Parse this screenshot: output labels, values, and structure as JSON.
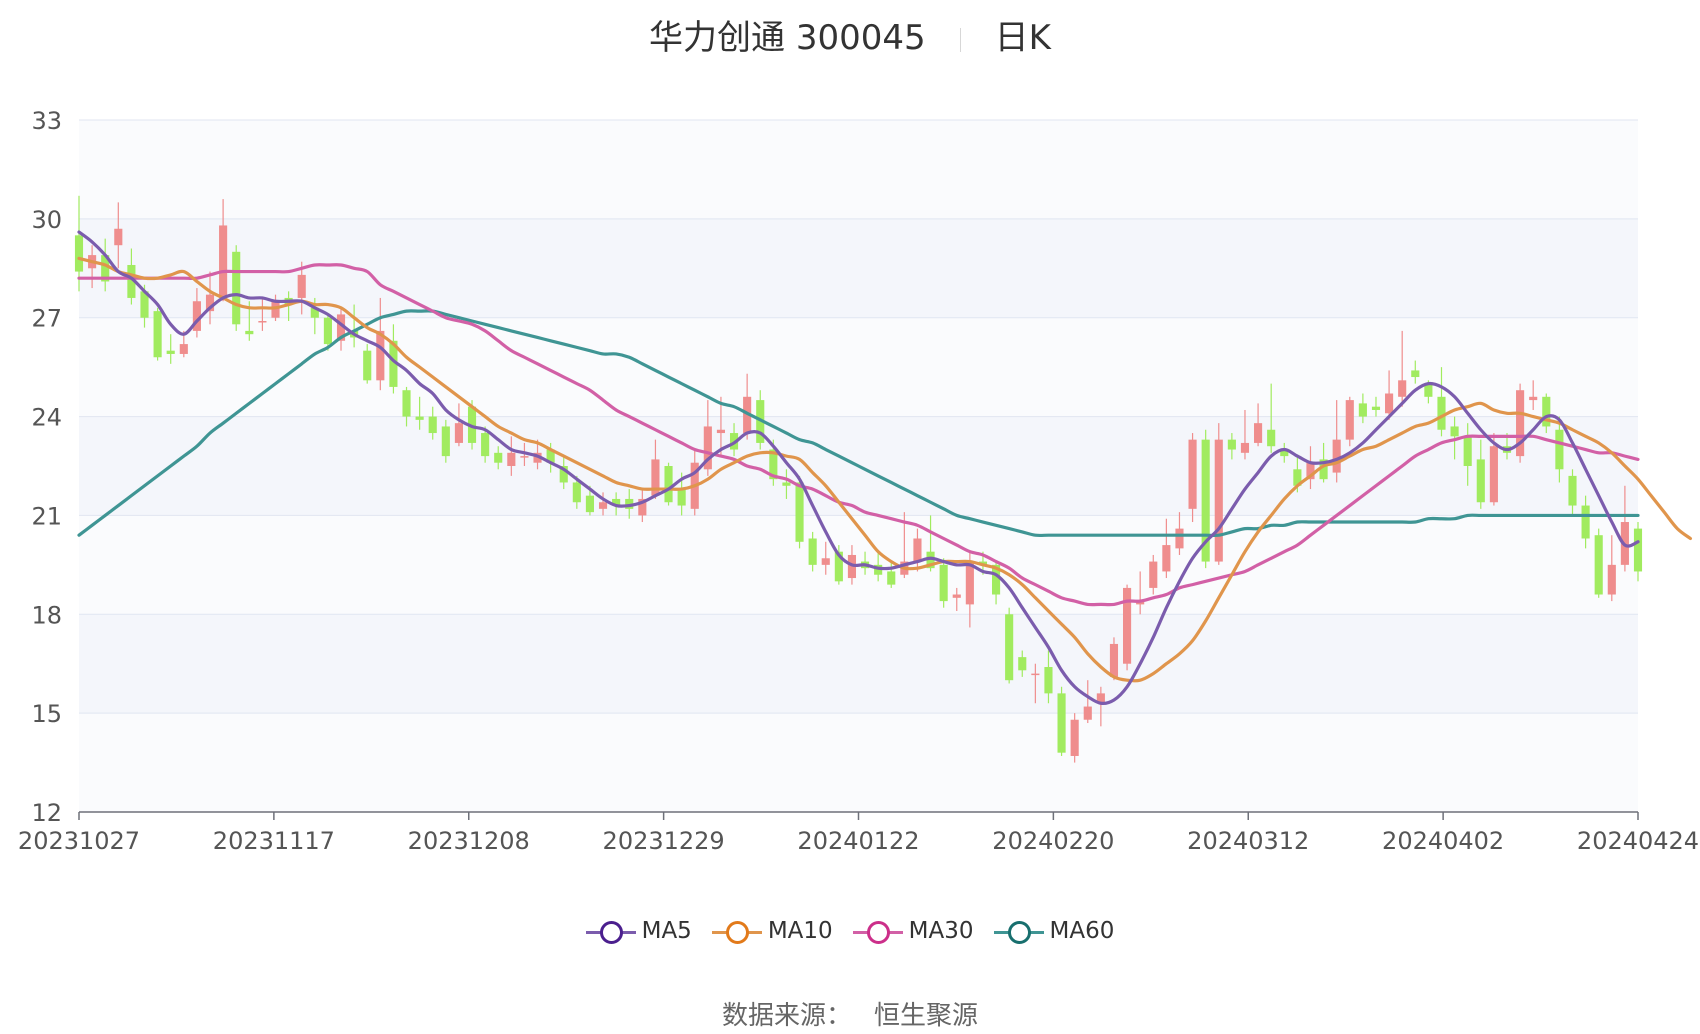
{
  "title": {
    "name": "华力创通 300045",
    "period": "日K"
  },
  "source": {
    "label": "数据来源：",
    "value": "恒生聚源"
  },
  "colors": {
    "up": "#ef8d8d",
    "down": "#a1eb5f",
    "MA5": "#7b5cad",
    "MA10": "#e0954c",
    "MA30": "#d260a6",
    "MA60": "#3f9594"
  },
  "legend_colors": {
    "MA5": "#4b1f8e",
    "MA10": "#e27a1a",
    "MA30": "#cc2f8a",
    "MA60": "#186f6e"
  },
  "chart_data": {
    "type": "candlestick",
    "title": "华力创通 300045 日K",
    "ylim": [
      12,
      33
    ],
    "yticks": [
      12,
      15,
      18,
      21,
      24,
      27,
      30,
      33
    ],
    "grid": true,
    "legend_position": "bottom",
    "xtick_labels": [
      "20231027",
      "20231117",
      "20231208",
      "20231229",
      "20240122",
      "20240220",
      "20240312",
      "20240402",
      "20240424"
    ],
    "num_trading_days": 120,
    "candles": [
      [
        29.5,
        28.4,
        30.7,
        27.8
      ],
      [
        28.5,
        28.9,
        29.2,
        27.9
      ],
      [
        28.9,
        28.1,
        29.4,
        27.8
      ],
      [
        29.2,
        29.7,
        30.5,
        28.5
      ],
      [
        28.6,
        27.6,
        29.1,
        27.4
      ],
      [
        27.8,
        27.0,
        28.0,
        26.7
      ],
      [
        27.2,
        25.8,
        27.3,
        25.7
      ],
      [
        26.0,
        25.9,
        26.5,
        25.6
      ],
      [
        25.9,
        26.2,
        26.6,
        25.8
      ],
      [
        26.6,
        27.5,
        27.9,
        26.4
      ],
      [
        27.2,
        27.7,
        28.4,
        26.8
      ],
      [
        27.6,
        29.8,
        30.6,
        27.5
      ],
      [
        29.0,
        26.8,
        29.2,
        26.6
      ],
      [
        26.6,
        26.5,
        27.5,
        26.3
      ],
      [
        26.9,
        26.9,
        27.6,
        26.6
      ],
      [
        27.0,
        27.5,
        27.7,
        26.9
      ],
      [
        27.6,
        27.4,
        27.8,
        26.9
      ],
      [
        27.6,
        28.3,
        28.7,
        27.1
      ],
      [
        27.3,
        27.0,
        27.6,
        26.5
      ],
      [
        27.0,
        26.2,
        27.1,
        26.0
      ],
      [
        26.3,
        27.1,
        27.3,
        26.0
      ],
      [
        26.6,
        26.4,
        27.4,
        26.1
      ],
      [
        26.0,
        25.1,
        26.2,
        25.0
      ],
      [
        25.1,
        26.6,
        27.6,
        24.8
      ],
      [
        26.3,
        24.9,
        26.8,
        24.7
      ],
      [
        24.8,
        24.0,
        24.9,
        23.7
      ],
      [
        24.0,
        23.9,
        24.6,
        23.6
      ],
      [
        24.0,
        23.5,
        24.3,
        23.3
      ],
      [
        23.7,
        22.8,
        23.9,
        22.6
      ],
      [
        23.2,
        23.8,
        24.4,
        23.1
      ],
      [
        24.3,
        23.2,
        24.5,
        23.0
      ],
      [
        23.5,
        22.8,
        23.7,
        22.6
      ],
      [
        22.9,
        22.6,
        23.1,
        22.4
      ],
      [
        22.5,
        22.9,
        23.4,
        22.2
      ],
      [
        22.8,
        22.8,
        23.2,
        22.5
      ],
      [
        22.6,
        22.9,
        23.3,
        22.4
      ],
      [
        23.0,
        22.6,
        23.2,
        22.3
      ],
      [
        22.5,
        22.0,
        22.8,
        21.8
      ],
      [
        22.0,
        21.4,
        22.2,
        21.2
      ],
      [
        21.6,
        21.1,
        21.9,
        21.0
      ],
      [
        21.2,
        21.4,
        21.7,
        21.0
      ],
      [
        21.5,
        21.3,
        21.7,
        21.0
      ],
      [
        21.5,
        21.2,
        21.8,
        20.9
      ],
      [
        21.0,
        21.5,
        21.8,
        20.8
      ],
      [
        21.6,
        22.7,
        23.3,
        21.5
      ],
      [
        22.5,
        21.4,
        22.6,
        21.3
      ],
      [
        21.8,
        21.3,
        22.3,
        21.0
      ],
      [
        21.2,
        22.6,
        23.0,
        21.0
      ],
      [
        22.4,
        23.7,
        24.5,
        22.2
      ],
      [
        23.5,
        23.6,
        24.6,
        22.8
      ],
      [
        23.5,
        23.0,
        23.8,
        22.8
      ],
      [
        23.5,
        24.6,
        25.3,
        23.3
      ],
      [
        24.5,
        23.2,
        24.8,
        23.0
      ],
      [
        23.0,
        22.1,
        23.3,
        21.9
      ],
      [
        22.0,
        21.9,
        22.4,
        21.5
      ],
      [
        22.0,
        20.2,
        22.2,
        20.0
      ],
      [
        20.3,
        19.5,
        20.5,
        19.3
      ],
      [
        19.5,
        19.7,
        20.2,
        19.2
      ],
      [
        19.9,
        19.0,
        20.1,
        18.9
      ],
      [
        19.1,
        19.8,
        20.1,
        18.9
      ],
      [
        19.6,
        19.4,
        19.9,
        19.2
      ],
      [
        19.5,
        19.2,
        19.9,
        19.0
      ],
      [
        19.3,
        18.9,
        19.6,
        18.8
      ],
      [
        19.2,
        19.6,
        21.1,
        19.1
      ],
      [
        19.6,
        20.3,
        20.6,
        19.3
      ],
      [
        19.9,
        19.4,
        21.0,
        19.3
      ],
      [
        19.5,
        18.4,
        19.7,
        18.2
      ],
      [
        18.5,
        18.6,
        18.8,
        18.1
      ],
      [
        18.3,
        19.6,
        19.9,
        17.6
      ],
      [
        19.6,
        19.5,
        19.9,
        19.2
      ],
      [
        19.5,
        18.6,
        19.6,
        18.3
      ],
      [
        18.0,
        16.0,
        18.2,
        15.9
      ],
      [
        16.7,
        16.3,
        16.9,
        16.1
      ],
      [
        16.2,
        16.2,
        16.5,
        15.3
      ],
      [
        16.4,
        15.6,
        16.9,
        15.3
      ],
      [
        15.6,
        13.8,
        15.8,
        13.7
      ],
      [
        13.7,
        14.8,
        15.0,
        13.5
      ],
      [
        14.8,
        15.2,
        16.0,
        14.7
      ],
      [
        15.3,
        15.6,
        15.8,
        14.6
      ],
      [
        16.1,
        17.1,
        17.3,
        16.0
      ],
      [
        16.5,
        18.8,
        18.9,
        16.3
      ],
      [
        18.3,
        18.4,
        19.3,
        18.0
      ],
      [
        18.8,
        19.6,
        19.8,
        18.6
      ],
      [
        19.3,
        20.1,
        20.9,
        19.1
      ],
      [
        20.0,
        20.6,
        21.1,
        19.8
      ],
      [
        21.2,
        23.3,
        23.5,
        20.8
      ],
      [
        23.3,
        19.6,
        23.6,
        19.4
      ],
      [
        19.6,
        23.3,
        23.8,
        19.5
      ],
      [
        23.3,
        23.0,
        23.5,
        22.7
      ],
      [
        22.9,
        23.2,
        24.2,
        22.7
      ],
      [
        23.2,
        23.8,
        24.4,
        23.1
      ],
      [
        23.6,
        23.1,
        25.0,
        22.9
      ],
      [
        23.0,
        22.8,
        23.2,
        22.6
      ],
      [
        22.4,
        21.9,
        22.8,
        21.7
      ],
      [
        22.1,
        22.6,
        23.1,
        21.8
      ],
      [
        22.7,
        22.1,
        23.2,
        22.0
      ],
      [
        22.3,
        23.3,
        24.5,
        22.0
      ],
      [
        23.3,
        24.5,
        24.6,
        23.1
      ],
      [
        24.4,
        24.0,
        24.7,
        23.8
      ],
      [
        24.3,
        24.2,
        24.6,
        24.0
      ],
      [
        24.1,
        24.7,
        25.4,
        23.9
      ],
      [
        24.6,
        25.1,
        26.6,
        24.3
      ],
      [
        25.4,
        25.2,
        25.7,
        25.0
      ],
      [
        25.0,
        24.6,
        25.1,
        24.4
      ],
      [
        24.6,
        23.6,
        25.5,
        23.4
      ],
      [
        23.7,
        23.4,
        24.0,
        22.7
      ],
      [
        23.4,
        22.5,
        23.8,
        21.9
      ],
      [
        22.7,
        21.4,
        23.3,
        21.2
      ],
      [
        21.4,
        23.1,
        23.5,
        21.3
      ],
      [
        23.1,
        22.9,
        23.5,
        22.7
      ],
      [
        22.8,
        24.8,
        25.0,
        22.6
      ],
      [
        24.5,
        24.6,
        25.1,
        24.2
      ],
      [
        24.6,
        23.7,
        24.7,
        23.5
      ],
      [
        23.6,
        22.4,
        24.0,
        22.0
      ],
      [
        22.2,
        21.3,
        22.4,
        21.0
      ],
      [
        21.3,
        20.3,
        21.6,
        20.0
      ],
      [
        20.4,
        18.6,
        20.6,
        18.5
      ],
      [
        18.6,
        19.5,
        20.4,
        18.4
      ],
      [
        19.5,
        20.8,
        21.9,
        19.3
      ],
      [
        20.6,
        19.3,
        20.8,
        19.0
      ]
    ],
    "series": [
      {
        "name": "MA5",
        "values": [
          29.6,
          29.3,
          28.9,
          28.4,
          28.2,
          27.8,
          27.4,
          26.8,
          26.5,
          26.9,
          27.3,
          27.6,
          27.7,
          27.6,
          27.6,
          27.5,
          27.5,
          27.5,
          27.3,
          27.1,
          26.8,
          26.5,
          26.3,
          26.1,
          25.7,
          25.4,
          25.0,
          24.7,
          24.2,
          23.9,
          23.7,
          23.6,
          23.3,
          23.0,
          22.9,
          22.8,
          22.6,
          22.4,
          22.1,
          21.8,
          21.5,
          21.3,
          21.3,
          21.4,
          21.6,
          21.8,
          22.1,
          22.3,
          22.7,
          23.0,
          23.2,
          23.5,
          23.5,
          23.1,
          22.6,
          22.1,
          21.3,
          20.5,
          19.8,
          19.5,
          19.5,
          19.4,
          19.4,
          19.5,
          19.6,
          19.7,
          19.6,
          19.5,
          19.5,
          19.3,
          19.2,
          18.8,
          18.2,
          17.6,
          17.0,
          16.3,
          15.8,
          15.5,
          15.3,
          15.4,
          15.8,
          16.5,
          17.3,
          18.2,
          19.0,
          19.7,
          20.2,
          20.6,
          21.2,
          21.8,
          22.3,
          22.8,
          23.0,
          22.8,
          22.6,
          22.6,
          22.7,
          22.9,
          23.2,
          23.6,
          24.0,
          24.4,
          24.8,
          25.0,
          24.9,
          24.6,
          24.1,
          23.6,
          23.2,
          23.0,
          23.2,
          23.6,
          24.0,
          23.9,
          23.2,
          22.4,
          21.6,
          20.8,
          20.1,
          20.2
        ]
      },
      {
        "name": "MA10",
        "values": [
          28.8,
          28.7,
          28.6,
          28.4,
          28.3,
          28.2,
          28.2,
          28.3,
          28.4,
          28.1,
          27.8,
          27.6,
          27.4,
          27.3,
          27.3,
          27.3,
          27.4,
          27.5,
          27.4,
          27.4,
          27.3,
          27.0,
          26.7,
          26.5,
          26.2,
          25.8,
          25.5,
          25.2,
          24.9,
          24.6,
          24.3,
          24.0,
          23.7,
          23.5,
          23.3,
          23.2,
          23.0,
          22.8,
          22.6,
          22.4,
          22.2,
          22.0,
          21.9,
          21.8,
          21.8,
          21.8,
          21.8,
          21.9,
          22.1,
          22.4,
          22.6,
          22.8,
          22.9,
          22.9,
          22.8,
          22.7,
          22.3,
          21.9,
          21.4,
          20.9,
          20.4,
          19.9,
          19.6,
          19.4,
          19.4,
          19.5,
          19.6,
          19.6,
          19.6,
          19.5,
          19.4,
          19.2,
          18.9,
          18.5,
          18.1,
          17.7,
          17.3,
          16.8,
          16.4,
          16.1,
          16.0,
          16.0,
          16.2,
          16.5,
          16.8,
          17.2,
          17.8,
          18.5,
          19.2,
          19.9,
          20.5,
          21.0,
          21.5,
          21.9,
          22.2,
          22.5,
          22.6,
          22.8,
          23.0,
          23.1,
          23.3,
          23.5,
          23.7,
          23.8,
          24.0,
          24.2,
          24.3,
          24.4,
          24.2,
          24.1,
          24.1,
          24.0,
          23.9,
          23.8,
          23.6,
          23.4,
          23.2,
          22.9,
          22.5,
          22.1,
          21.6,
          21.1,
          20.6,
          20.3
        ]
      },
      {
        "name": "MA30",
        "values": [
          28.2,
          28.2,
          28.2,
          28.2,
          28.2,
          28.2,
          28.2,
          28.2,
          28.2,
          28.2,
          28.3,
          28.4,
          28.4,
          28.4,
          28.4,
          28.4,
          28.4,
          28.5,
          28.6,
          28.6,
          28.6,
          28.5,
          28.4,
          28.0,
          27.8,
          27.6,
          27.4,
          27.2,
          27.0,
          26.9,
          26.8,
          26.6,
          26.3,
          26.0,
          25.8,
          25.6,
          25.4,
          25.2,
          25.0,
          24.8,
          24.5,
          24.2,
          24.0,
          23.8,
          23.6,
          23.4,
          23.2,
          23.0,
          22.9,
          22.8,
          22.7,
          22.5,
          22.4,
          22.2,
          22.1,
          21.9,
          21.8,
          21.6,
          21.4,
          21.3,
          21.1,
          21.0,
          20.9,
          20.8,
          20.7,
          20.5,
          20.3,
          20.1,
          19.9,
          19.8,
          19.6,
          19.4,
          19.1,
          18.9,
          18.7,
          18.5,
          18.4,
          18.3,
          18.3,
          18.3,
          18.4,
          18.4,
          18.5,
          18.6,
          18.8,
          18.9,
          19.0,
          19.1,
          19.2,
          19.3,
          19.5,
          19.7,
          19.9,
          20.1,
          20.4,
          20.7,
          21.0,
          21.3,
          21.6,
          21.9,
          22.2,
          22.5,
          22.8,
          23.0,
          23.2,
          23.3,
          23.4,
          23.4,
          23.4,
          23.4,
          23.4,
          23.4,
          23.3,
          23.2,
          23.1,
          23.0,
          22.9,
          22.9,
          22.8,
          22.7
        ]
      },
      {
        "name": "MA60",
        "values": [
          20.4,
          20.7,
          21.0,
          21.3,
          21.6,
          21.9,
          22.2,
          22.5,
          22.8,
          23.1,
          23.5,
          23.8,
          24.1,
          24.4,
          24.7,
          25.0,
          25.3,
          25.6,
          25.9,
          26.1,
          26.4,
          26.6,
          26.8,
          27.0,
          27.1,
          27.2,
          27.2,
          27.2,
          27.1,
          27.0,
          26.9,
          26.8,
          26.7,
          26.6,
          26.5,
          26.4,
          26.3,
          26.2,
          26.1,
          26.0,
          25.9,
          25.9,
          25.8,
          25.6,
          25.4,
          25.2,
          25.0,
          24.8,
          24.6,
          24.4,
          24.3,
          24.1,
          23.9,
          23.7,
          23.5,
          23.3,
          23.2,
          23.0,
          22.8,
          22.6,
          22.4,
          22.2,
          22.0,
          21.8,
          21.6,
          21.4,
          21.2,
          21.0,
          20.9,
          20.8,
          20.7,
          20.6,
          20.5,
          20.4,
          20.4,
          20.4,
          20.4,
          20.4,
          20.4,
          20.4,
          20.4,
          20.4,
          20.4,
          20.4,
          20.4,
          20.4,
          20.4,
          20.4,
          20.5,
          20.6,
          20.6,
          20.7,
          20.7,
          20.8,
          20.8,
          20.8,
          20.8,
          20.8,
          20.8,
          20.8,
          20.8,
          20.8,
          20.8,
          20.9,
          20.9,
          20.9,
          21.0,
          21.0,
          21.0,
          21.0,
          21.0,
          21.0,
          21.0,
          21.0,
          21.0,
          21.0,
          21.0,
          21.0,
          21.0,
          21.0
        ]
      }
    ]
  }
}
